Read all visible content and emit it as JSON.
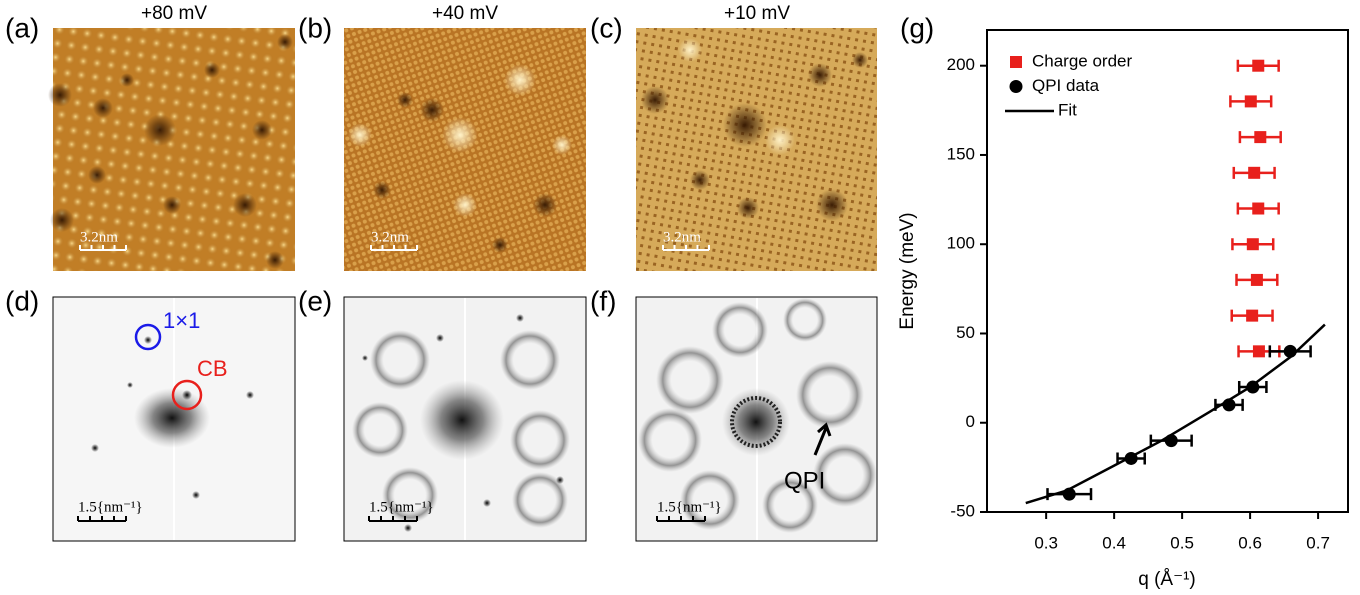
{
  "panels": [
    {
      "label": "(a)",
      "title": "+80 mV",
      "scale_bar": "3.2nm"
    },
    {
      "label": "(b)",
      "title": "+40 mV",
      "scale_bar": "3.2nm"
    },
    {
      "label": "(c)",
      "title": "+10 mV",
      "scale_bar": "3.2nm"
    },
    {
      "label": "(d)",
      "scale_bar": "1.5{nm⁻¹}"
    },
    {
      "label": "(e)",
      "scale_bar": "1.5{nm⁻¹}"
    },
    {
      "label": "(f)",
      "scale_bar": "1.5{nm⁻¹}"
    }
  ],
  "annotations": [
    "1×1",
    "CB",
    "QPI"
  ],
  "chart_data": {
    "type": "scatter",
    "panel_label": "(g)",
    "x_label": "q (Å⁻¹)",
    "y_label": "Energy (meV)",
    "xlim": [
      0.213,
      0.744
    ],
    "ylim": [
      -50,
      220
    ],
    "xticks": [
      0.3,
      0.4,
      0.5,
      0.6,
      0.7
    ],
    "yticks": [
      -50,
      0,
      50,
      100,
      150,
      200
    ],
    "legend": "top-left",
    "series": [
      {
        "name": "Charge order",
        "color": "#e8201c",
        "marker": "square",
        "x": [
          0.613,
          0.603,
          0.61,
          0.604,
          0.612,
          0.606,
          0.615,
          0.601,
          0.612
        ],
        "xerr": [
          0.03,
          0.03,
          0.03,
          0.03,
          0.03,
          0.03,
          0.03,
          0.03,
          0.03
        ],
        "values": [
          40,
          60,
          80,
          100,
          120,
          140,
          160,
          180,
          200
        ]
      },
      {
        "name": "QPI data",
        "color": "#000000",
        "marker": "circle",
        "x": [
          0.334,
          0.425,
          0.484,
          0.569,
          0.604,
          0.659
        ],
        "xerr": [
          0.032,
          0.02,
          0.03,
          0.02,
          0.02,
          0.03
        ],
        "values": [
          -40,
          -20,
          -10,
          10,
          20,
          40
        ]
      },
      {
        "name": "Fit",
        "color": "#000000",
        "marker": "line",
        "x": [
          0.27,
          0.33,
          0.4,
          0.47,
          0.54,
          0.6,
          0.66,
          0.71
        ],
        "values": [
          -45,
          -38,
          -24,
          -10,
          6,
          20,
          37,
          55
        ]
      }
    ]
  }
}
